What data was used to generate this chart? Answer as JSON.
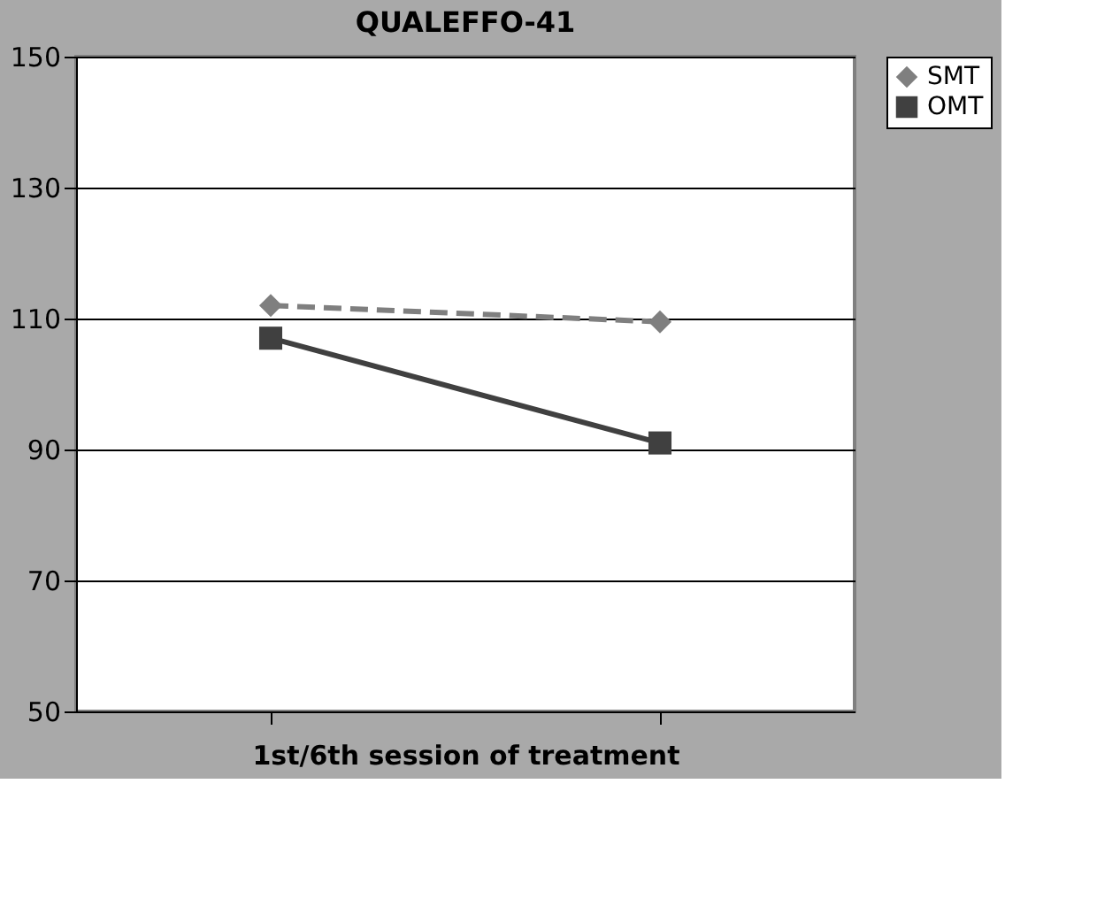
{
  "chart_data": {
    "type": "line",
    "title": "QUALEFFO-41",
    "xlabel": "1st/6th session of treatment",
    "categories": [
      null,
      null
    ],
    "series": [
      {
        "name": "SMT",
        "color": "#7f7f7f",
        "values": [
          112,
          109.5
        ],
        "marker": "diamond",
        "line_style": "dashed"
      },
      {
        "name": "OMT",
        "color": "#404040",
        "values": [
          107,
          91
        ],
        "marker": "square",
        "line_style": "solid"
      }
    ],
    "ylim": [
      50,
      150
    ],
    "yticks": [
      50,
      70,
      90,
      110,
      130,
      150
    ],
    "grid": "y",
    "legend": "right",
    "tick_labels": "y"
  }
}
